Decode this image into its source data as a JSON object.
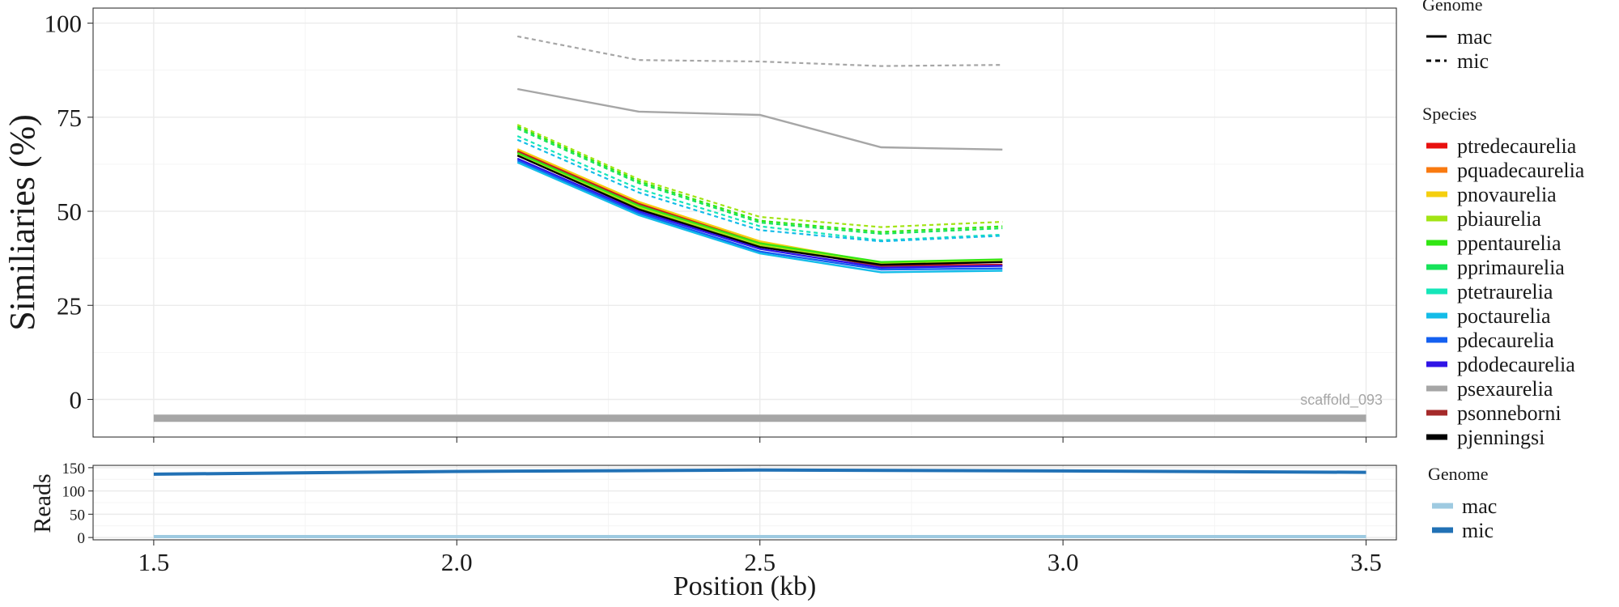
{
  "colors": {
    "ptredecaurelia": "#e8110f",
    "pquadecaurelia": "#f97a10",
    "pnovaurelia": "#f5cf0f",
    "pbiaurelia": "#a2e414",
    "ppentaurelia": "#31e613",
    "pprimaurelia": "#17e35a",
    "ptetraurelia": "#15e6b9",
    "poctaurelia": "#14bce8",
    "pdecaurelia": "#1460f0",
    "pdodecaurelia": "#3014e6",
    "psexaurelia": "#a6a6a6",
    "psonneborni": "#a52a2a",
    "pjenningsi": "#000000",
    "reads_mac": "#9ecae1",
    "reads_mic": "#2171b5"
  },
  "chart_data": [
    {
      "type": "line",
      "name": "similarity",
      "ylabel": "Similiaries (%)",
      "xlabel": "",
      "xlim": [
        1.4,
        3.55
      ],
      "ylim": [
        -10,
        104
      ],
      "x_ticks": [
        1.5,
        2.0,
        2.5,
        3.0,
        3.5
      ],
      "y_ticks": [
        0,
        25,
        50,
        75,
        100
      ],
      "y_tick_labels": [
        "0",
        "25",
        "50",
        "75",
        "100"
      ],
      "x": [
        2.1,
        2.3,
        2.5,
        2.7,
        2.9
      ],
      "annotation": "scaffold_093",
      "scaffold_bar": {
        "x": [
          1.5,
          3.5
        ],
        "y": -5
      },
      "legend_genome": {
        "title": "Genome",
        "entries": [
          "mac",
          "mic"
        ]
      },
      "legend_species": {
        "title": "Species",
        "entries": [
          "ptredecaurelia",
          "pquadecaurelia",
          "pnovaurelia",
          "pbiaurelia",
          "ppentaurelia",
          "pprimaurelia",
          "ptetraurelia",
          "poctaurelia",
          "pdecaurelia",
          "pdodecaurelia",
          "psexaurelia",
          "psonneborni",
          "pjenningsi"
        ]
      },
      "series": [
        {
          "name": "psexaurelia",
          "genome": "mic",
          "values": [
            96.5,
            90.2,
            89.8,
            88.6,
            88.9
          ]
        },
        {
          "name": "psexaurelia",
          "genome": "mac",
          "values": [
            82.5,
            76.5,
            75.6,
            67.0,
            66.4
          ]
        },
        {
          "name": "pbiaurelia",
          "genome": "mic",
          "values": [
            73.0,
            58.5,
            48.5,
            45.8,
            47.2
          ]
        },
        {
          "name": "ppentaurelia",
          "genome": "mic",
          "values": [
            72.5,
            58.0,
            47.5,
            44.5,
            46.0
          ]
        },
        {
          "name": "pprimaurelia",
          "genome": "mic",
          "values": [
            72.0,
            57.5,
            47.0,
            44.0,
            45.5
          ]
        },
        {
          "name": "ptetraurelia",
          "genome": "mic",
          "values": [
            70.0,
            56.0,
            46.0,
            42.3,
            43.8
          ]
        },
        {
          "name": "poctaurelia",
          "genome": "mic",
          "values": [
            69.0,
            55.0,
            45.0,
            42.0,
            43.5
          ]
        },
        {
          "name": "pnovaurelia",
          "genome": "mac",
          "values": [
            66.5,
            52.5,
            42.0,
            36.2,
            36.8
          ]
        },
        {
          "name": "ptredecaurelia",
          "genome": "mac",
          "values": [
            66.0,
            52.0,
            41.5,
            35.5,
            35.8
          ]
        },
        {
          "name": "psonneborni",
          "genome": "mac",
          "values": [
            65.8,
            51.8,
            41.3,
            35.3,
            35.6
          ]
        },
        {
          "name": "ppentaurelia",
          "genome": "mac",
          "values": [
            65.5,
            51.5,
            41.5,
            36.5,
            37.2
          ]
        },
        {
          "name": "pbiaurelia",
          "genome": "mac",
          "values": [
            65.0,
            51.0,
            41.0,
            36.0,
            36.8
          ]
        },
        {
          "name": "pjenningsi",
          "genome": "mac",
          "values": [
            64.8,
            50.5,
            40.5,
            35.8,
            36.5
          ]
        },
        {
          "name": "pdodecaurelia",
          "genome": "mac",
          "values": [
            64.0,
            50.0,
            40.0,
            35.0,
            35.5
          ]
        },
        {
          "name": "pdecaurelia",
          "genome": "mac",
          "values": [
            63.5,
            49.5,
            39.3,
            34.5,
            34.8
          ]
        },
        {
          "name": "poctaurelia",
          "genome": "mac",
          "values": [
            63.0,
            49.0,
            38.8,
            33.8,
            34.2
          ]
        }
      ]
    },
    {
      "type": "line",
      "name": "reads",
      "ylabel": "Reads",
      "xlabel": "Position (kb)",
      "xlim": [
        1.4,
        3.55
      ],
      "ylim": [
        -5,
        155
      ],
      "x_ticks": [
        1.5,
        2.0,
        2.5,
        3.0,
        3.5
      ],
      "x_tick_labels": [
        "1.5",
        "2.0",
        "2.5",
        "3.0",
        "3.5"
      ],
      "y_ticks": [
        0,
        50,
        100,
        150
      ],
      "y_tick_labels": [
        "0",
        "50",
        "100",
        "150"
      ],
      "x": [
        1.5,
        2.0,
        2.5,
        3.0,
        3.5
      ],
      "legend_genome": {
        "title": "Genome",
        "entries": [
          "mac",
          "mic"
        ]
      },
      "series": [
        {
          "name": "mac",
          "values": [
            2,
            2,
            2,
            2,
            2
          ]
        },
        {
          "name": "mic",
          "values": [
            136,
            142,
            145,
            143,
            140
          ]
        }
      ]
    }
  ]
}
